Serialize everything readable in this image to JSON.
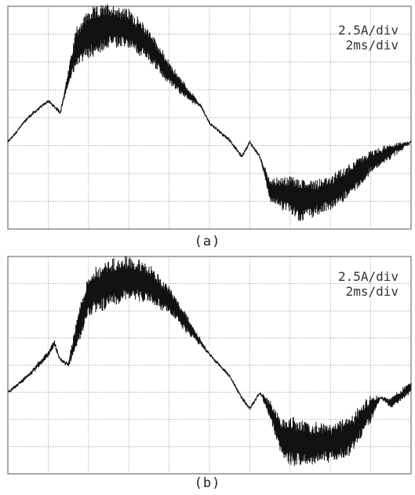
{
  "figure": {
    "panels": [
      {
        "caption": "(a)",
        "scale_current": "2.5A/div",
        "scale_time": "2ms/div"
      },
      {
        "caption": "(b)",
        "scale_current": "2.5A/div",
        "scale_time": "2ms/div"
      }
    ]
  },
  "chart_data": [
    {
      "type": "line",
      "xlabel": "",
      "ylabel": "",
      "xlim": [
        0,
        20
      ],
      "ylim": [
        -10,
        10
      ],
      "grid": true,
      "trace_color": "#111111",
      "grid_color": "#9a9a9a",
      "series": [
        {
          "x": [
            0,
            1,
            2,
            2.6,
            3,
            3.4,
            4,
            5,
            6,
            7,
            8,
            9,
            9.6,
            10,
            11,
            11.6,
            12,
            12.5,
            13,
            14,
            14.5,
            15,
            16,
            17,
            18,
            19,
            20
          ],
          "y": [
            -2.2,
            0,
            1.5,
            0.5,
            3.5,
            6.5,
            7.5,
            8.3,
            8,
            6.5,
            4,
            2,
            1,
            -0.5,
            -2,
            -3.5,
            -2.2,
            -3.5,
            -6.5,
            -7,
            -7.4,
            -7.3,
            -6.8,
            -5.5,
            -4,
            -3,
            -2.2
          ],
          "ripple": [
            0,
            0,
            0,
            0,
            1.5,
            3.5,
            4.5,
            4,
            3.5,
            3,
            2,
            1,
            0,
            0,
            0,
            0,
            0,
            0,
            2,
            3.5,
            4,
            3.5,
            3,
            3,
            2,
            1.2,
            0
          ]
        }
      ]
    },
    {
      "type": "line",
      "xlabel": "",
      "ylabel": "",
      "xlim": [
        0,
        20
      ],
      "ylim": [
        -10,
        10
      ],
      "grid": true,
      "trace_color": "#111111",
      "grid_color": "#9a9a9a",
      "series": [
        {
          "x": [
            0,
            1,
            2,
            2.3,
            2.6,
            3,
            3.5,
            4,
            5,
            6,
            7,
            8,
            9,
            9.6,
            10,
            11,
            11.6,
            12,
            12.5,
            13,
            13.5,
            14,
            15,
            16,
            17,
            18,
            18.5,
            19,
            20
          ],
          "y": [
            -2.5,
            -1,
            1,
            2,
            0.5,
            0,
            3.5,
            6.5,
            7.5,
            8.1,
            7.5,
            6,
            3.5,
            2,
            1,
            -1,
            -3,
            -4,
            -2.5,
            -4,
            -6.5,
            -7,
            -7.3,
            -7.1,
            -6.5,
            -4,
            -3,
            -3.5,
            -2
          ],
          "ripple": [
            0,
            0.3,
            0.5,
            0.5,
            0,
            0.5,
            3,
            4,
            4.5,
            4,
            3.5,
            2.5,
            1.5,
            0.5,
            0,
            0,
            0,
            0,
            0,
            1.5,
            3.5,
            4.5,
            4,
            3.5,
            3.5,
            2.5,
            0,
            1,
            1
          ]
        }
      ]
    }
  ]
}
